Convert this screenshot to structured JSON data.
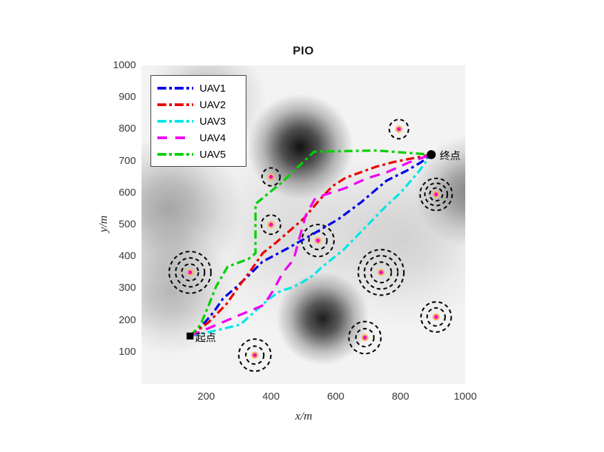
{
  "title": "PIO",
  "figure": {
    "background": "#ffffff",
    "plot_bg": "#f3f3f3"
  },
  "axes": {
    "xlabel": "x/m",
    "ylabel": "y/m",
    "x_ticks": [
      200,
      400,
      600,
      800,
      1000
    ],
    "y_ticks": [
      100,
      200,
      300,
      400,
      500,
      600,
      700,
      800,
      900,
      1000
    ],
    "xlim": [
      0,
      1000
    ],
    "ylim": [
      0,
      1000
    ]
  },
  "chart_data": {
    "type": "line",
    "title": "PIO",
    "xlabel": "x/m",
    "ylabel": "y/m",
    "xlim": [
      0,
      1000
    ],
    "ylim": [
      0,
      1000
    ],
    "grid": false,
    "legend_position": "top-left",
    "series": [
      {
        "name": "UAV1",
        "color": "#0000ee",
        "dash": "dashdot",
        "points": [
          [
            150,
            150
          ],
          [
            196,
            193
          ],
          [
            224,
            227
          ],
          [
            252,
            268
          ],
          [
            292,
            303
          ],
          [
            335,
            344
          ],
          [
            373,
            383
          ],
          [
            452,
            426
          ],
          [
            529,
            470
          ],
          [
            608,
            517
          ],
          [
            678,
            570
          ],
          [
            757,
            638
          ],
          [
            820,
            670
          ],
          [
            862,
            695
          ],
          [
            895,
            720
          ]
        ]
      },
      {
        "name": "UAV2",
        "color": "#ee0000",
        "dash": "dashdot",
        "points": [
          [
            150,
            150
          ],
          [
            207,
            193
          ],
          [
            262,
            250
          ],
          [
            305,
            312
          ],
          [
            341,
            361
          ],
          [
            375,
            411
          ],
          [
            416,
            444
          ],
          [
            458,
            481
          ],
          [
            501,
            519
          ],
          [
            550,
            578
          ],
          [
            590,
            621
          ],
          [
            630,
            647
          ],
          [
            725,
            682
          ],
          [
            780,
            697
          ],
          [
            845,
            710
          ],
          [
            895,
            720
          ]
        ]
      },
      {
        "name": "UAV3",
        "color": "#00e6e6",
        "dash": "dashdot",
        "points": [
          [
            150,
            150
          ],
          [
            220,
            165
          ],
          [
            305,
            186
          ],
          [
            348,
            225
          ],
          [
            395,
            268
          ],
          [
            430,
            292
          ],
          [
            465,
            302
          ],
          [
            495,
            318
          ],
          [
            530,
            340
          ],
          [
            555,
            365
          ],
          [
            623,
            420
          ],
          [
            757,
            560
          ],
          [
            800,
            600
          ],
          [
            855,
            665
          ],
          [
            895,
            720
          ]
        ]
      },
      {
        "name": "UAV4",
        "color": "#f000f0",
        "dash": "dashed",
        "points": [
          [
            150,
            150
          ],
          [
            213,
            177
          ],
          [
            299,
            214
          ],
          [
            377,
            247
          ],
          [
            405,
            290
          ],
          [
            437,
            350
          ],
          [
            470,
            390
          ],
          [
            487,
            455
          ],
          [
            507,
            528
          ],
          [
            537,
            584
          ],
          [
            630,
            615
          ],
          [
            695,
            645
          ],
          [
            757,
            664
          ],
          [
            825,
            695
          ],
          [
            895,
            720
          ]
        ]
      },
      {
        "name": "UAV5",
        "color": "#00d000",
        "dash": "dashdot",
        "points": [
          [
            150,
            150
          ],
          [
            182,
            185
          ],
          [
            205,
            240
          ],
          [
            230,
            305
          ],
          [
            266,
            368
          ],
          [
            330,
            392
          ],
          [
            352,
            410
          ],
          [
            352,
            565
          ],
          [
            433,
            632
          ],
          [
            533,
            729
          ],
          [
            725,
            733
          ],
          [
            895,
            720
          ]
        ]
      }
    ],
    "markers": {
      "start": {
        "label": "起点",
        "xy": [
          150,
          150
        ],
        "shape": "square",
        "color": "#000000"
      },
      "end": {
        "label": "终点",
        "xy": [
          895,
          720
        ],
        "shape": "circle",
        "color": "#000000"
      }
    },
    "obstacles": {
      "ring_color": "#0a0a0a",
      "dot_color": "#ff00c8",
      "dot_halo_color": "#f2b765",
      "items": [
        {
          "center": [
            795,
            800
          ],
          "rings": [
            30
          ]
        },
        {
          "center": [
            400,
            650
          ],
          "rings": [
            28
          ]
        },
        {
          "center": [
            910,
            595
          ],
          "rings": [
            20,
            35,
            50
          ]
        },
        {
          "center": [
            400,
            500
          ],
          "rings": [
            30
          ]
        },
        {
          "center": [
            545,
            450
          ],
          "rings": [
            28,
            50
          ]
        },
        {
          "center": [
            150,
            350
          ],
          "rings": [
            26,
            45,
            65
          ]
        },
        {
          "center": [
            740,
            350
          ],
          "rings": [
            32,
            52,
            71
          ]
        },
        {
          "center": [
            910,
            210
          ],
          "rings": [
            28,
            47
          ]
        },
        {
          "center": [
            690,
            145
          ],
          "rings": [
            28,
            50
          ]
        },
        {
          "center": [
            350,
            90
          ],
          "rings": [
            28,
            50
          ]
        }
      ]
    },
    "terrain_blobs": [
      {
        "cx": 490,
        "cy": 745,
        "r": 165,
        "opacity": 0.93
      },
      {
        "cx": 560,
        "cy": 205,
        "r": 145,
        "opacity": 0.88
      },
      {
        "cx": 85,
        "cy": 550,
        "r": 230,
        "opacity": 0.32
      },
      {
        "cx": 1015,
        "cy": 605,
        "r": 175,
        "opacity": 0.45
      },
      {
        "cx": 200,
        "cy": 890,
        "r": 190,
        "opacity": 0.24
      },
      {
        "cx": 90,
        "cy": 290,
        "r": 200,
        "opacity": 0.25
      },
      {
        "cx": 810,
        "cy": 455,
        "r": 280,
        "opacity": 0.14
      },
      {
        "cx": 480,
        "cy": 480,
        "r": 320,
        "opacity": 0.1
      }
    ]
  }
}
